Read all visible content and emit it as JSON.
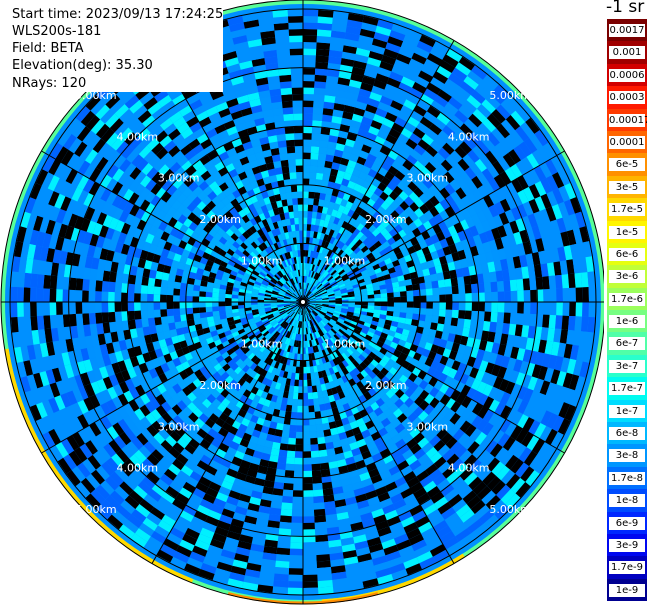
{
  "header": {
    "start_time": "Start time: 2023/09/13 17:24:25",
    "instrument": "WLS200s-181",
    "field": "Field: BETA",
    "elevation": "Elevation(deg): 35.30",
    "nrays": "NRays: 120"
  },
  "colorbar": {
    "unit_label": "-1 sr",
    "segments": [
      {
        "label": "0.0017",
        "color": "#7a0000"
      },
      {
        "label": "0.001",
        "color": "#a00000"
      },
      {
        "label": "0.0006",
        "color": "#d20000"
      },
      {
        "label": "0.0003",
        "color": "#ff1a00"
      },
      {
        "label": "0.00017",
        "color": "#ff3a00"
      },
      {
        "label": "0.0001",
        "color": "#ff6600"
      },
      {
        "label": "6e-5",
        "color": "#ff9000"
      },
      {
        "label": "3e-5",
        "color": "#ffb400"
      },
      {
        "label": "1.7e-5",
        "color": "#ffd800"
      },
      {
        "label": "1e-5",
        "color": "#fff500"
      },
      {
        "label": "6e-6",
        "color": "#e6ff10"
      },
      {
        "label": "3e-6",
        "color": "#c0ff38"
      },
      {
        "label": "1.7e-6",
        "color": "#9cff5c"
      },
      {
        "label": "1e-6",
        "color": "#76ff82"
      },
      {
        "label": "6e-7",
        "color": "#50ffa8"
      },
      {
        "label": "3e-7",
        "color": "#2affcc"
      },
      {
        "label": "1.7e-7",
        "color": "#00fbf0"
      },
      {
        "label": "1e-7",
        "color": "#00dcff"
      },
      {
        "label": "6e-8",
        "color": "#00b8ff"
      },
      {
        "label": "3e-8",
        "color": "#0096ff"
      },
      {
        "label": "1.7e-8",
        "color": "#0070ff"
      },
      {
        "label": "1e-8",
        "color": "#004cff"
      },
      {
        "label": "6e-9",
        "color": "#0028ff"
      },
      {
        "label": "3e-9",
        "color": "#0008f0"
      },
      {
        "label": "1.7e-9",
        "color": "#0000c0"
      },
      {
        "label": "1e-9",
        "color": "#000090"
      }
    ]
  },
  "ppi": {
    "range_rings": [
      {
        "label": "1.00km"
      },
      {
        "label": "2.00km"
      },
      {
        "label": "3.00km"
      },
      {
        "label": "4.00km"
      },
      {
        "label": "5.00km"
      }
    ],
    "spoke_angle_step_deg": 30,
    "colors": {
      "inner": "#00d8ff",
      "mid": "#00b4ff",
      "outer": "#0090ff",
      "speckle_light": "#00f0ff",
      "speckle_dark": "#0064ff",
      "rim_green": "#58ff98",
      "rim_yellow": "#ffd800",
      "rim_orange": "#ff8c00",
      "grid": "#000000"
    }
  }
}
